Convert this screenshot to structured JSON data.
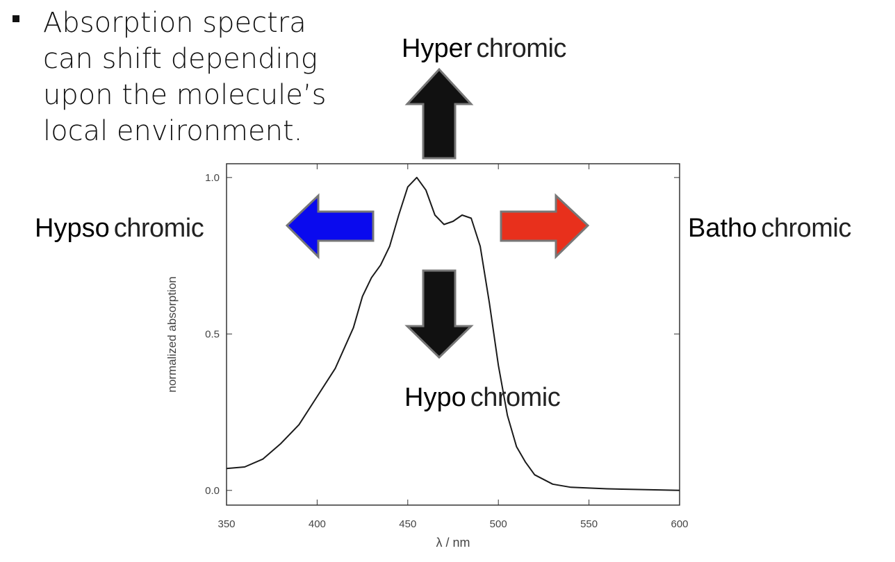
{
  "bullet_lines": [
    "Absorption spectra",
    "can shift depending",
    "upon the molecule’s",
    "local environment."
  ],
  "annotations": [
    {
      "strong": "Hyper",
      "rest": "chromic"
    },
    {
      "strong": "Hypso",
      "rest": "chromic"
    },
    {
      "strong": "Batho",
      "rest": "chromic"
    },
    {
      "strong": "Hypo",
      "rest": "chromic"
    }
  ],
  "chart_data": {
    "type": "line",
    "x_label": "λ / nm",
    "y_label": "normalized absorption",
    "x": [
      350,
      360,
      370,
      380,
      390,
      400,
      410,
      420,
      425,
      430,
      435,
      440,
      445,
      450,
      455,
      460,
      465,
      470,
      475,
      480,
      485,
      490,
      495,
      500,
      505,
      510,
      515,
      520,
      530,
      540,
      560,
      600
    ],
    "values": [
      0.07,
      0.075,
      0.1,
      0.15,
      0.21,
      0.3,
      0.39,
      0.52,
      0.62,
      0.68,
      0.72,
      0.78,
      0.88,
      0.97,
      1.0,
      0.96,
      0.88,
      0.85,
      0.86,
      0.88,
      0.87,
      0.78,
      0.6,
      0.4,
      0.24,
      0.14,
      0.09,
      0.05,
      0.02,
      0.01,
      0.005,
      0.0
    ],
    "color": "#1a1a1a",
    "xlim": [
      350,
      600
    ],
    "ylim": [
      -0.047,
      1.044
    ],
    "xticks": [
      350,
      400,
      450,
      500,
      550,
      600
    ],
    "yticks": [
      {
        "value": 0,
        "label": "0.0"
      },
      {
        "value": 0.5,
        "label": "0.5"
      },
      {
        "value": 1,
        "label": "1.0"
      }
    ]
  }
}
